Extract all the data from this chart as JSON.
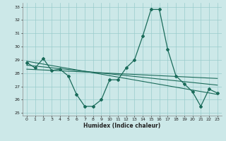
{
  "xlabel": "Humidex (Indice chaleur)",
  "background_color": "#cce8e8",
  "grid_color": "#99cccc",
  "line_color": "#1a6b5a",
  "xlim": [
    -0.5,
    23.5
  ],
  "ylim": [
    24.8,
    33.3
  ],
  "yticks": [
    25,
    26,
    27,
    28,
    29,
    30,
    31,
    32,
    33
  ],
  "xticks": [
    0,
    1,
    2,
    3,
    4,
    5,
    6,
    7,
    8,
    9,
    10,
    11,
    12,
    13,
    14,
    15,
    16,
    17,
    18,
    19,
    20,
    21,
    22,
    23
  ],
  "series1_x": [
    0,
    1,
    2,
    3,
    4,
    5,
    6,
    7,
    8,
    9,
    10,
    11,
    12,
    13,
    14,
    15,
    16,
    17,
    18,
    19,
    20,
    21,
    22,
    23
  ],
  "series1_y": [
    28.8,
    28.4,
    29.1,
    28.2,
    28.3,
    27.8,
    26.4,
    25.5,
    25.5,
    26.0,
    27.5,
    27.5,
    28.4,
    29.0,
    30.8,
    32.8,
    32.8,
    29.8,
    27.8,
    27.2,
    26.6,
    25.5,
    26.8,
    26.5
  ],
  "trend1_x": [
    0,
    23
  ],
  "trend1_y": [
    28.9,
    26.4
  ],
  "trend2_x": [
    0,
    23
  ],
  "trend2_y": [
    28.6,
    27.1
  ],
  "trend3_x": [
    0,
    23
  ],
  "trend3_y": [
    28.3,
    27.6
  ]
}
